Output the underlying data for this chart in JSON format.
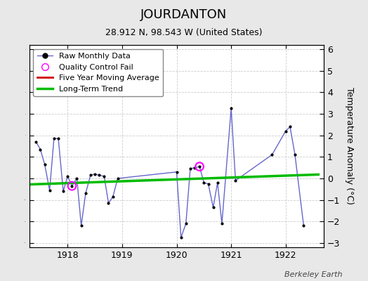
{
  "title": "JOURDANTON",
  "subtitle": "28.912 N, 98.543 W (United States)",
  "credit": "Berkeley Earth",
  "ylabel": "Temperature Anomaly (°C)",
  "ylim": [
    -3.2,
    6.2
  ],
  "background_color": "#e8e8e8",
  "plot_bg_color": "#ffffff",
  "raw_data": {
    "x": [
      1917.42,
      1917.5,
      1917.58,
      1917.67,
      1917.75,
      1917.83,
      1917.92,
      1918.0,
      1918.08,
      1918.17,
      1918.25,
      1918.33,
      1918.42,
      1918.5,
      1918.58,
      1918.67,
      1918.75,
      1918.83,
      1918.92,
      1920.0,
      1920.08,
      1920.17,
      1920.25,
      1920.33,
      1920.42,
      1920.5,
      1920.58,
      1920.67,
      1920.75,
      1920.83,
      1921.0,
      1921.08,
      1921.75,
      1922.0,
      1922.08,
      1922.17,
      1922.33
    ],
    "y": [
      1.7,
      1.35,
      0.65,
      -0.55,
      1.85,
      1.85,
      -0.6,
      0.1,
      -0.35,
      0.0,
      -2.2,
      -0.7,
      0.15,
      0.2,
      0.15,
      0.1,
      -1.15,
      -0.85,
      0.0,
      0.3,
      -2.75,
      -2.1,
      0.45,
      0.5,
      0.55,
      -0.2,
      -0.25,
      -1.35,
      -0.2,
      -2.1,
      3.25,
      -0.1,
      1.1,
      2.2,
      2.4,
      1.1,
      -2.2
    ]
  },
  "qc_fail": {
    "x": [
      1918.08,
      1920.42
    ],
    "y": [
      -0.35,
      0.55
    ]
  },
  "trend": {
    "x": [
      1917.3,
      1922.6
    ],
    "y": [
      -0.28,
      0.18
    ]
  },
  "raw_line_color": "#6666cc",
  "trend_color": "#00bb00",
  "moving_avg_color": "#cc0000",
  "qc_color": "#ff00ff",
  "marker_color": "#000000",
  "xlim": [
    1917.3,
    1922.7
  ],
  "xticks": [
    1918,
    1919,
    1920,
    1921,
    1922
  ],
  "yticks": [
    -3,
    -2,
    -1,
    0,
    1,
    2,
    3,
    4,
    5,
    6
  ]
}
